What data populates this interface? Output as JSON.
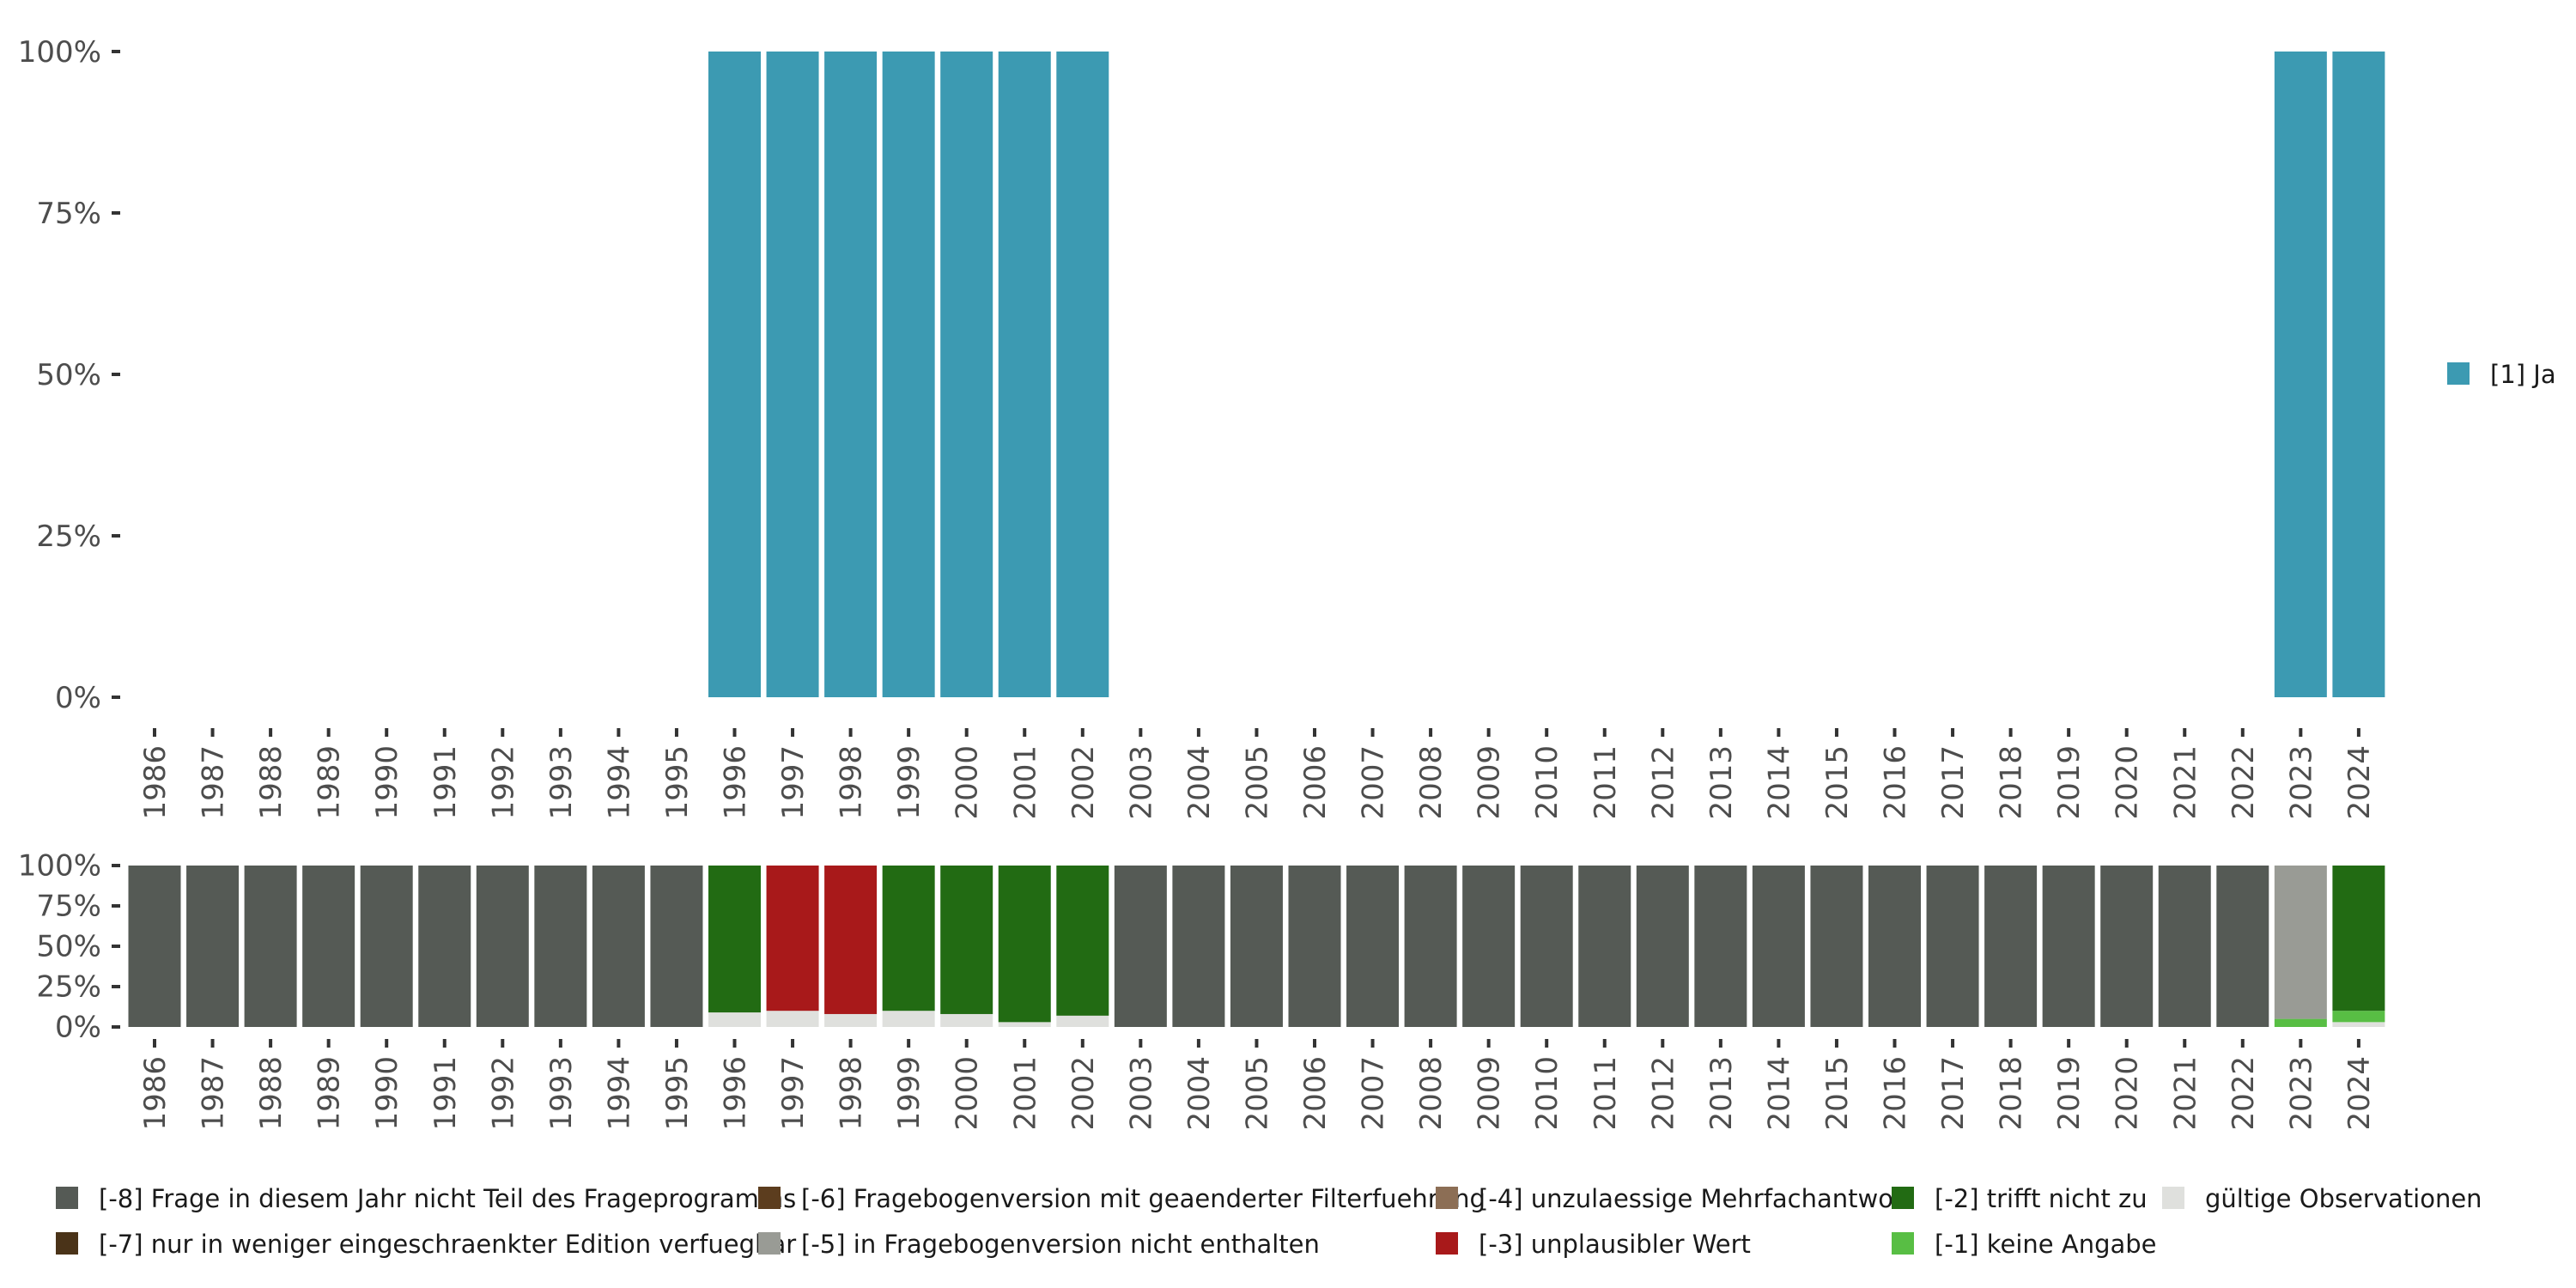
{
  "colors": {
    "ja": "#3C9AB2",
    "m8": "#555A55",
    "m7": "#4A3318",
    "m6": "#5C3D1E",
    "m5": "#999B95",
    "m4": "#8C6E55",
    "m3": "#A8191A",
    "m2": "#226B13",
    "m1": "#58BE44",
    "valid": "#DFE0DD"
  },
  "chart_data": [
    {
      "type": "bar",
      "stacked": true,
      "title": "",
      "xlabel": "",
      "ylabel": "",
      "ylim": [
        0,
        100
      ],
      "y_ticks": [
        "0%",
        "25%",
        "50%",
        "75%",
        "100%"
      ],
      "categories": [
        "1986",
        "1987",
        "1988",
        "1989",
        "1990",
        "1991",
        "1992",
        "1993",
        "1994",
        "1995",
        "1996",
        "1997",
        "1998",
        "1999",
        "2000",
        "2001",
        "2002",
        "2003",
        "2004",
        "2005",
        "2006",
        "2007",
        "2008",
        "2009",
        "2010",
        "2011",
        "2012",
        "2013",
        "2014",
        "2015",
        "2016",
        "2017",
        "2018",
        "2019",
        "2020",
        "2021",
        "2022",
        "2023",
        "2024"
      ],
      "series": [
        {
          "name": "[1] Ja",
          "color_key": "ja",
          "values": [
            0,
            0,
            0,
            0,
            0,
            0,
            0,
            0,
            0,
            0,
            100,
            100,
            100,
            100,
            100,
            100,
            100,
            0,
            0,
            0,
            0,
            0,
            0,
            0,
            0,
            0,
            0,
            0,
            0,
            0,
            0,
            0,
            0,
            0,
            0,
            0,
            0,
            100,
            100
          ]
        }
      ],
      "legend": {
        "position": "right",
        "entries": [
          "[1] Ja"
        ]
      }
    },
    {
      "type": "bar",
      "stacked": true,
      "title": "",
      "xlabel": "",
      "ylabel": "",
      "ylim": [
        0,
        100
      ],
      "y_ticks": [
        "0%",
        "25%",
        "50%",
        "75%",
        "100%"
      ],
      "categories": [
        "1986",
        "1987",
        "1988",
        "1989",
        "1990",
        "1991",
        "1992",
        "1993",
        "1994",
        "1995",
        "1996",
        "1997",
        "1998",
        "1999",
        "2000",
        "2001",
        "2002",
        "2003",
        "2004",
        "2005",
        "2006",
        "2007",
        "2008",
        "2009",
        "2010",
        "2011",
        "2012",
        "2013",
        "2014",
        "2015",
        "2016",
        "2017",
        "2018",
        "2019",
        "2020",
        "2021",
        "2022",
        "2023",
        "2024"
      ],
      "series": [
        {
          "name": "gültige Observationen",
          "color_key": "valid",
          "values": [
            0,
            0,
            0,
            0,
            0,
            0,
            0,
            0,
            0,
            0,
            9,
            10,
            8,
            10,
            8,
            3,
            7,
            0,
            0,
            0,
            0,
            0,
            0,
            0,
            0,
            0,
            0,
            0,
            0,
            0,
            0,
            0,
            0,
            0,
            0,
            0,
            0,
            0,
            3
          ]
        },
        {
          "name": "[-1] keine Angabe",
          "color_key": "m1",
          "values": [
            0,
            0,
            0,
            0,
            0,
            0,
            0,
            0,
            0,
            0,
            0,
            0,
            0,
            0,
            0,
            0,
            0,
            0,
            0,
            0,
            0,
            0,
            0,
            0,
            0,
            0,
            0,
            0,
            0,
            0,
            0,
            0,
            0,
            0,
            0,
            0,
            0,
            5,
            7
          ]
        },
        {
          "name": "[-3] unplausibler Wert",
          "color_key": "m3",
          "values": [
            0,
            0,
            0,
            0,
            0,
            0,
            0,
            0,
            0,
            0,
            0,
            90,
            92,
            0,
            0,
            0,
            0,
            0,
            0,
            0,
            0,
            0,
            0,
            0,
            0,
            0,
            0,
            0,
            0,
            0,
            0,
            0,
            0,
            0,
            0,
            0,
            0,
            0,
            0
          ]
        },
        {
          "name": "[-2] trifft nicht zu",
          "color_key": "m2",
          "values": [
            0,
            0,
            0,
            0,
            0,
            0,
            0,
            0,
            0,
            0,
            91,
            0,
            0,
            90,
            92,
            97,
            93,
            0,
            0,
            0,
            0,
            0,
            0,
            0,
            0,
            0,
            0,
            0,
            0,
            0,
            0,
            0,
            0,
            0,
            0,
            0,
            0,
            0,
            90
          ]
        },
        {
          "name": "[-5] in Fragebogenversion nicht enthalten",
          "color_key": "m5",
          "values": [
            0,
            0,
            0,
            0,
            0,
            0,
            0,
            0,
            0,
            0,
            0,
            0,
            0,
            0,
            0,
            0,
            0,
            0,
            0,
            0,
            0,
            0,
            0,
            0,
            0,
            0,
            0,
            0,
            0,
            0,
            0,
            0,
            0,
            0,
            0,
            0,
            0,
            95,
            0
          ]
        },
        {
          "name": "[-8] Frage in diesem Jahr nicht Teil des Frageprogramms",
          "color_key": "m8",
          "values": [
            100,
            100,
            100,
            100,
            100,
            100,
            100,
            100,
            100,
            100,
            0,
            0,
            0,
            0,
            0,
            0,
            0,
            100,
            100,
            100,
            100,
            100,
            100,
            100,
            100,
            100,
            100,
            100,
            100,
            100,
            100,
            100,
            100,
            100,
            100,
            100,
            100,
            0,
            0
          ]
        }
      ],
      "legend": {
        "position": "bottom",
        "entries": [
          {
            "label": "[-8] Frage in diesem Jahr nicht Teil des Frageprogramms",
            "color_key": "m8"
          },
          {
            "label": "[-7] nur in weniger eingeschraenkter Edition verfuegbar",
            "color_key": "m7"
          },
          {
            "label": "[-6] Fragebogenversion mit geaenderter Filterfuehrung",
            "color_key": "m6"
          },
          {
            "label": "[-5] in Fragebogenversion nicht enthalten",
            "color_key": "m5"
          },
          {
            "label": "[-4] unzulaessige Mehrfachantwort",
            "color_key": "m4"
          },
          {
            "label": "[-3] unplausibler Wert",
            "color_key": "m3"
          },
          {
            "label": "[-2] trifft nicht zu",
            "color_key": "m2"
          },
          {
            "label": "[-1] keine Angabe",
            "color_key": "m1"
          },
          {
            "label": "gültige Observationen",
            "color_key": "valid"
          }
        ]
      }
    }
  ]
}
